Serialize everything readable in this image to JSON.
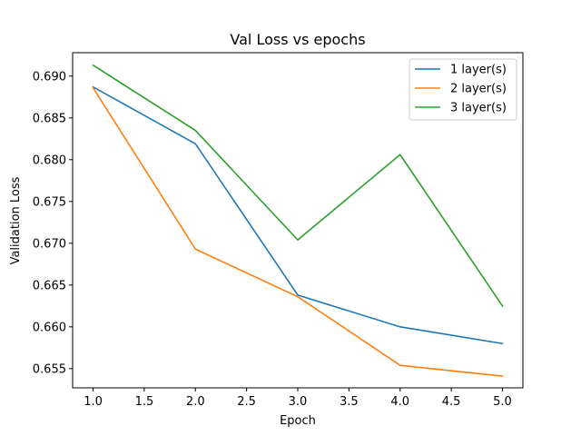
{
  "chart_data": {
    "type": "line",
    "title": "Val Loss vs epochs",
    "xlabel": "Epoch",
    "ylabel": "Validation Loss",
    "x": [
      1,
      2,
      3,
      4,
      5
    ],
    "xlim": [
      0.8,
      5.2
    ],
    "ylim": [
      0.6527,
      0.6928
    ],
    "xticks": [
      "1.0",
      "1.5",
      "2.0",
      "2.5",
      "3.0",
      "3.5",
      "4.0",
      "4.5",
      "5.0"
    ],
    "yticks": [
      "0.655",
      "0.660",
      "0.665",
      "0.670",
      "0.675",
      "0.680",
      "0.685",
      "0.690"
    ],
    "grid": false,
    "legend_position": "top-right",
    "series": [
      {
        "name": "1 layer(s)",
        "color": "#1f77b4",
        "values": [
          0.6887,
          0.6819,
          0.6638,
          0.66,
          0.658
        ]
      },
      {
        "name": "2 layer(s)",
        "color": "#ff7f0e",
        "values": [
          0.6886,
          0.6693,
          0.6636,
          0.6554,
          0.6541
        ]
      },
      {
        "name": "3 layer(s)",
        "color": "#2ca02c",
        "values": [
          0.6913,
          0.6835,
          0.6704,
          0.6806,
          0.6625
        ]
      }
    ]
  }
}
